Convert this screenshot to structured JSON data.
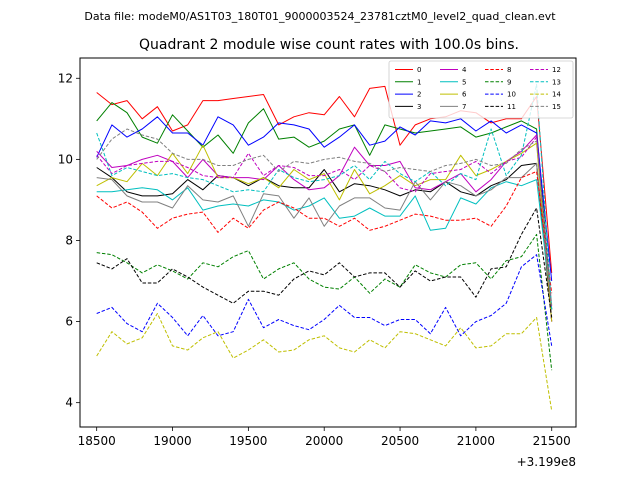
{
  "figure": {
    "suptitle": "Data file: modeM0/AS1T03_180T01_9000003524_23781cztM0_level2_quad_clean.evt",
    "title": "Quadrant 2 module wise count rates with 100.0s bins.",
    "x_offset_label": "+3.199e8"
  },
  "chart_data": {
    "type": "line",
    "title": "Quadrant 2 module wise count rates with 100.0s bins.",
    "xlabel": "",
    "ylabel": "",
    "x_offset": "+3.199e8",
    "xlim": [
      18390,
      21660
    ],
    "ylim": [
      3.4,
      12.5
    ],
    "xticks": [
      18500,
      19000,
      19500,
      20000,
      20500,
      21000,
      21500
    ],
    "yticks": [
      4,
      6,
      8,
      10,
      12
    ],
    "grid": false,
    "legend": "top-right",
    "legend_columns": 4,
    "x": [
      18500,
      18600,
      18700,
      18800,
      18900,
      19000,
      19100,
      19200,
      19300,
      19400,
      19500,
      19600,
      19700,
      19800,
      19900,
      20000,
      20100,
      20200,
      20300,
      20400,
      20500,
      20600,
      20700,
      20800,
      20900,
      21000,
      21100,
      21200,
      21300,
      21400,
      21500
    ],
    "series": [
      {
        "name": "0",
        "color": "#ff0000",
        "dash": "solid",
        "values": [
          11.65,
          11.35,
          11.45,
          11.0,
          11.3,
          10.7,
          10.85,
          11.45,
          11.45,
          11.5,
          11.55,
          11.6,
          10.85,
          11.05,
          11.15,
          11.1,
          11.55,
          11.05,
          11.75,
          11.8,
          10.35,
          10.85,
          11.0,
          11.05,
          11.2,
          11.15,
          10.9,
          11.0,
          11.0,
          11.55,
          7.2
        ]
      },
      {
        "name": "1",
        "color": "#008000",
        "dash": "solid",
        "values": [
          10.95,
          11.4,
          11.15,
          10.55,
          10.4,
          11.1,
          10.7,
          10.3,
          10.6,
          10.15,
          10.9,
          11.25,
          10.5,
          10.55,
          10.3,
          10.45,
          10.75,
          10.85,
          10.1,
          10.85,
          10.75,
          10.65,
          10.7,
          10.75,
          10.8,
          10.55,
          10.65,
          10.8,
          10.95,
          10.75,
          6.3
        ]
      },
      {
        "name": "2",
        "color": "#0000ff",
        "dash": "solid",
        "values": [
          10.05,
          10.85,
          10.55,
          10.75,
          11.05,
          10.65,
          10.65,
          10.35,
          11.05,
          10.85,
          10.35,
          10.55,
          10.9,
          10.85,
          10.75,
          10.3,
          10.55,
          10.85,
          10.35,
          10.45,
          10.8,
          10.6,
          10.95,
          10.9,
          11.0,
          10.7,
          10.95,
          10.65,
          10.85,
          10.65,
          7.0
        ]
      },
      {
        "name": "3",
        "color": "#000000",
        "dash": "solid",
        "values": [
          9.8,
          9.55,
          9.2,
          9.1,
          9.1,
          9.15,
          9.5,
          9.25,
          9.6,
          9.55,
          9.35,
          9.55,
          9.35,
          9.3,
          9.3,
          9.75,
          9.2,
          9.4,
          9.35,
          9.25,
          9.1,
          9.25,
          9.2,
          9.45,
          9.2,
          9.1,
          9.35,
          9.5,
          9.85,
          9.9,
          6.0
        ]
      },
      {
        "name": "4",
        "color": "#bf00bf",
        "dash": "solid",
        "values": [
          10.2,
          9.8,
          9.85,
          10.0,
          10.1,
          9.95,
          9.55,
          10.0,
          9.6,
          9.55,
          9.55,
          9.5,
          9.85,
          9.5,
          9.25,
          9.3,
          9.6,
          10.3,
          9.85,
          9.85,
          9.95,
          9.3,
          9.25,
          9.45,
          9.65,
          9.2,
          9.5,
          9.95,
          10.2,
          10.6,
          6.0
        ]
      },
      {
        "name": "5",
        "color": "#00bfbf",
        "dash": "solid",
        "values": [
          9.2,
          9.2,
          9.25,
          9.3,
          9.25,
          9.0,
          9.3,
          8.75,
          8.85,
          8.9,
          8.85,
          9.0,
          8.95,
          8.75,
          8.85,
          9.05,
          8.55,
          8.6,
          8.8,
          8.6,
          8.6,
          9.1,
          8.25,
          8.3,
          9.05,
          8.9,
          9.3,
          9.45,
          9.35,
          9.5,
          6.3
        ]
      },
      {
        "name": "6",
        "color": "#bfbf00",
        "dash": "solid",
        "values": [
          9.35,
          9.55,
          9.45,
          9.9,
          9.6,
          10.15,
          9.65,
          10.35,
          9.55,
          9.55,
          9.4,
          9.55,
          9.3,
          9.75,
          9.5,
          9.65,
          9.0,
          9.75,
          9.15,
          9.35,
          9.6,
          9.35,
          9.5,
          9.5,
          10.1,
          9.6,
          9.75,
          9.95,
          10.15,
          10.4,
          6.0
        ]
      },
      {
        "name": "7",
        "color": "#808080",
        "dash": "solid",
        "values": [
          9.55,
          9.5,
          9.1,
          8.95,
          8.95,
          8.8,
          9.35,
          9.0,
          8.95,
          9.1,
          8.35,
          9.15,
          9.1,
          8.55,
          9.05,
          8.35,
          8.85,
          9.05,
          9.05,
          8.8,
          8.75,
          9.45,
          9.0,
          9.45,
          9.35,
          9.1,
          9.25,
          9.55,
          9.55,
          9.9,
          6.3
        ]
      },
      {
        "name": "8",
        "color": "#ff0000",
        "dash": "dashed",
        "values": [
          9.1,
          8.8,
          8.95,
          8.7,
          8.3,
          8.55,
          8.65,
          8.7,
          8.2,
          8.55,
          8.3,
          8.75,
          8.95,
          8.8,
          8.55,
          8.55,
          8.35,
          8.55,
          8.25,
          8.35,
          8.5,
          8.65,
          8.6,
          8.5,
          8.5,
          8.55,
          8.35,
          8.85,
          9.55,
          9.7,
          6.7
        ]
      },
      {
        "name": "9",
        "color": "#008000",
        "dash": "dashed",
        "values": [
          7.7,
          7.65,
          7.45,
          7.2,
          7.4,
          7.25,
          7.05,
          7.45,
          7.35,
          7.6,
          7.75,
          7.05,
          7.3,
          7.45,
          7.05,
          6.85,
          6.8,
          7.1,
          6.7,
          7.05,
          6.85,
          7.4,
          7.2,
          7.1,
          7.4,
          7.45,
          7.05,
          7.5,
          7.6,
          8.15,
          4.8
        ]
      },
      {
        "name": "10",
        "color": "#0000ff",
        "dash": "dashed",
        "values": [
          6.2,
          6.35,
          5.95,
          5.75,
          6.45,
          6.1,
          5.65,
          6.15,
          5.65,
          5.75,
          6.55,
          5.85,
          6.05,
          5.9,
          5.8,
          6.05,
          6.4,
          6.1,
          6.1,
          5.9,
          6.05,
          6.05,
          5.7,
          6.35,
          5.65,
          6.0,
          6.15,
          6.45,
          7.35,
          7.65,
          5.4
        ]
      },
      {
        "name": "11",
        "color": "#000000",
        "dash": "dashed",
        "values": [
          7.45,
          7.3,
          7.55,
          6.95,
          6.95,
          7.3,
          7.1,
          6.85,
          6.65,
          6.45,
          6.75,
          6.75,
          6.65,
          7.05,
          7.25,
          7.15,
          7.45,
          7.1,
          7.2,
          7.2,
          6.85,
          7.25,
          7.0,
          7.1,
          7.1,
          6.6,
          7.3,
          7.35,
          8.15,
          8.8,
          6.1
        ]
      },
      {
        "name": "12",
        "color": "#bf00bf",
        "dash": "dashed",
        "values": [
          10.1,
          9.65,
          9.85,
          9.9,
          9.95,
          9.95,
          9.8,
          9.6,
          9.55,
          9.55,
          10.15,
          9.6,
          9.85,
          9.8,
          9.6,
          9.6,
          9.75,
          9.5,
          9.85,
          9.7,
          9.3,
          9.2,
          9.65,
          9.7,
          9.75,
          9.95,
          9.65,
          9.95,
          10.05,
          10.55,
          6.35
        ]
      },
      {
        "name": "13",
        "color": "#00bfbf",
        "dash": "dashed",
        "values": [
          10.65,
          9.6,
          9.8,
          9.7,
          9.6,
          9.65,
          9.55,
          9.5,
          9.35,
          9.2,
          9.25,
          9.2,
          9.75,
          9.55,
          9.45,
          9.5,
          9.6,
          9.85,
          9.5,
          9.95,
          9.65,
          9.45,
          9.7,
          9.35,
          9.65,
          9.5,
          10.75,
          9.6,
          10.1,
          11.85,
          6.3
        ]
      },
      {
        "name": "14",
        "color": "#bfbf00",
        "dash": "dashed",
        "values": [
          5.15,
          5.75,
          5.45,
          5.6,
          6.2,
          5.4,
          5.3,
          5.6,
          5.75,
          5.1,
          5.3,
          5.55,
          5.25,
          5.3,
          5.55,
          5.65,
          5.35,
          5.25,
          5.55,
          5.35,
          5.75,
          5.7,
          5.55,
          5.4,
          5.85,
          5.35,
          5.4,
          5.7,
          5.7,
          6.1,
          3.8
        ]
      },
      {
        "name": "15",
        "color": "#808080",
        "dash": "dashed",
        "values": [
          10.0,
          10.5,
          10.75,
          10.6,
          10.5,
          10.15,
          10.0,
          10.0,
          9.85,
          9.85,
          10.0,
          10.1,
          9.7,
          9.95,
          9.9,
          10.0,
          10.05,
          9.95,
          9.9,
          9.7,
          9.8,
          9.75,
          9.7,
          9.85,
          9.9,
          10.0,
          9.85,
          9.9,
          10.25,
          10.45,
          6.4
        ]
      }
    ]
  }
}
